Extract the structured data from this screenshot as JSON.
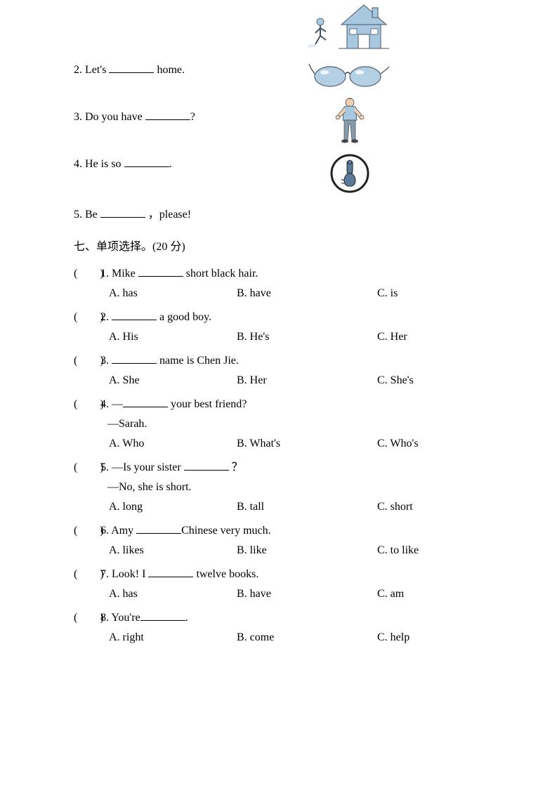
{
  "fillIn": {
    "q2": {
      "prefix": "2. Let's ",
      "suffix": " home."
    },
    "q3": {
      "prefix": "3. Do you have ",
      "suffix": "?"
    },
    "q4": {
      "prefix": "4. He is so ",
      "suffix": "."
    },
    "q5": {
      "prefix": "5. Be ",
      "suffix": " ，please!"
    }
  },
  "images": {
    "runner_house": "runner-and-house",
    "glasses": "glasses",
    "strong_man": "strong-man",
    "quiet_sign": "quiet-sign"
  },
  "sectionTitle": "七、单项选择。(20 分)",
  "mc": [
    {
      "num": "1",
      "stem_a": "Mike ",
      "stem_b": " short black hair.",
      "A": "A. has",
      "B": "B. have",
      "C": "C. is"
    },
    {
      "num": "2",
      "stem_a": "",
      "stem_b": " a good boy.",
      "A": "A. His",
      "B": "B. He's",
      "C": "C. Her"
    },
    {
      "num": "3",
      "stem_a": "",
      "stem_b": " name is Chen Jie.",
      "A": "A. She",
      "B": "B. Her",
      "C": "C. She's"
    },
    {
      "num": "4",
      "stem_a": "—",
      "stem_b": " your best friend?",
      "sub": "—Sarah.",
      "A": "A. Who",
      "B": "B. What's",
      "C": "C. Who's"
    },
    {
      "num": "5",
      "stem_a": "—Is your sister ",
      "stem_b": " ？",
      "sub": "—No, she is short.",
      "A": "A. long",
      "B": "B. tall",
      "C": "C. short"
    },
    {
      "num": "6",
      "stem_a": "Amy ",
      "stem_b": "Chinese very much.",
      "A": "A. likes",
      "B": "B. like",
      "C": "C. to like"
    },
    {
      "num": "7",
      "stem_a": "Look! I ",
      "stem_b": " twelve books.",
      "A": "A. has",
      "B": "B. have",
      "C": "C. am"
    },
    {
      "num": "8",
      "stem_a": "You're",
      "stem_b": ".",
      "A": "A. right",
      "B": "B. come",
      "C": "C. help"
    }
  ],
  "parenLabel": "(　　)"
}
